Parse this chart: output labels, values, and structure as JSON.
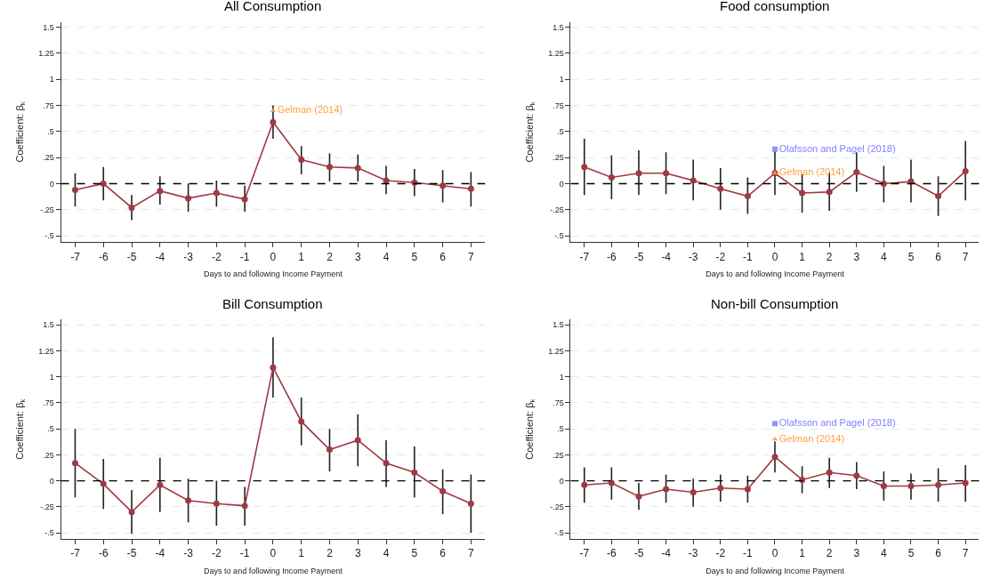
{
  "chart_data": [
    {
      "type": "line",
      "title": "All Consumption",
      "xlabel": "Days to and following Income Payment",
      "ylabel": "Coefficient: β$_{k}$",
      "x": [
        -7,
        -6,
        -5,
        -4,
        -3,
        -2,
        -1,
        0,
        1,
        2,
        3,
        4,
        5,
        6,
        7
      ],
      "series": [
        {
          "color": "#9e3a44",
          "marker": "circle",
          "values": [
            -0.06,
            0,
            -0.23,
            -0.07,
            -0.14,
            -0.09,
            -0.15,
            0.59,
            0.23,
            0.16,
            0.15,
            0.03,
            0.01,
            -0.02,
            -0.05
          ],
          "errors": [
            [
              -0.22,
              0.1
            ],
            [
              -0.16,
              0.16
            ],
            [
              -0.35,
              -0.11
            ],
            [
              -0.2,
              0.07
            ],
            [
              -0.27,
              0
            ],
            [
              -0.22,
              0.03
            ],
            [
              -0.27,
              -0.02
            ],
            [
              0.43,
              0.75
            ],
            [
              0.09,
              0.36
            ],
            [
              0.02,
              0.29
            ],
            [
              0.02,
              0.28
            ],
            [
              -0.1,
              0.17
            ],
            [
              -0.12,
              0.14
            ],
            [
              -0.18,
              0.13
            ],
            [
              -0.22,
              0.11
            ]
          ]
        },
        {
          "type": "scatter",
          "name": "Gelman (2014)",
          "color": "#ffa040",
          "marker": "triangle",
          "values": [
            null,
            null,
            null,
            null,
            null,
            null,
            null,
            0.7,
            null,
            null,
            null,
            null,
            null,
            null,
            null
          ]
        }
      ],
      "xlim": [
        -7.5,
        7.5
      ],
      "xticks": [
        -7,
        -6,
        -5,
        -4,
        -3,
        -2,
        -1,
        0,
        1,
        2,
        3,
        4,
        5,
        6,
        7
      ],
      "ylim": [
        -0.56,
        1.55
      ],
      "yticks": [
        {
          "value": -0.5,
          "label": "-.5"
        },
        {
          "value": -0.25,
          "label": "-.25"
        },
        0,
        {
          "value": 0.25,
          "label": ".25"
        },
        {
          "value": 0.5,
          "label": ".5"
        },
        {
          "value": 0.75,
          "label": ".75"
        },
        1,
        1.25,
        1.5
      ],
      "ref_lines": [
        {
          "axis": "y",
          "value": 0,
          "color": "#000000",
          "line_style": "dashed"
        }
      ],
      "grid": "y",
      "legend": false
    },
    {
      "type": "line",
      "title": "Food consumption",
      "xlabel": "Days to and following Income Payment",
      "ylabel": "Coefficient: β$_{k}$",
      "x": [
        -7,
        -6,
        -5,
        -4,
        -3,
        -2,
        -1,
        0,
        1,
        2,
        3,
        4,
        5,
        6,
        7
      ],
      "series": [
        {
          "color": "#9e3a44",
          "marker": "circle",
          "values": [
            0.16,
            0.06,
            0.1,
            0.1,
            0.03,
            -0.05,
            -0.12,
            0.1,
            -0.09,
            -0.08,
            0.11,
            0.0,
            0.02,
            -0.12,
            0.12
          ],
          "errors": [
            [
              -0.11,
              0.43
            ],
            [
              -0.15,
              0.27
            ],
            [
              -0.11,
              0.32
            ],
            [
              -0.1,
              0.3
            ],
            [
              -0.16,
              0.23
            ],
            [
              -0.25,
              0.15
            ],
            [
              -0.29,
              0.06
            ],
            [
              -0.11,
              0.31
            ],
            [
              -0.28,
              0.09
            ],
            [
              -0.26,
              0.11
            ],
            [
              -0.08,
              0.3
            ],
            [
              -0.18,
              0.17
            ],
            [
              -0.18,
              0.23
            ],
            [
              -0.31,
              0.07
            ],
            [
              -0.16,
              0.41
            ]
          ]
        },
        {
          "type": "scatter",
          "name": "Olafsson and Pagel (2018)",
          "color": "#8080ff",
          "marker": "square",
          "values": [
            null,
            null,
            null,
            null,
            null,
            null,
            null,
            0.33,
            null,
            null,
            null,
            null,
            null,
            null,
            null
          ]
        },
        {
          "type": "scatter",
          "name": "Gelman (2014)",
          "color": "#ffa040",
          "marker": "triangle",
          "values": [
            null,
            null,
            null,
            null,
            null,
            null,
            null,
            0.1,
            null,
            null,
            null,
            null,
            null,
            null,
            null
          ]
        }
      ],
      "xlim": [
        -7.5,
        7.5
      ],
      "xticks": [
        -7,
        -6,
        -5,
        -4,
        -3,
        -2,
        -1,
        0,
        1,
        2,
        3,
        4,
        5,
        6,
        7
      ],
      "ylim": [
        -0.56,
        1.55
      ],
      "yticks": [
        {
          "value": -0.5,
          "label": "-.5"
        },
        {
          "value": -0.25,
          "label": "-.25"
        },
        0,
        {
          "value": 0.25,
          "label": ".25"
        },
        {
          "value": 0.5,
          "label": ".5"
        },
        {
          "value": 0.75,
          "label": ".75"
        },
        1,
        1.25,
        1.5
      ],
      "ref_lines": [
        {
          "axis": "y",
          "value": 0,
          "color": "#000000",
          "line_style": "dashed"
        }
      ],
      "grid": "y",
      "legend": false
    },
    {
      "type": "line",
      "title": "Bill Consumption",
      "xlabel": "Days to and following Income Payment",
      "ylabel": "Coefficient: β$_{k}$",
      "x": [
        -7,
        -6,
        -5,
        -4,
        -3,
        -2,
        -1,
        0,
        1,
        2,
        3,
        4,
        5,
        6,
        7
      ],
      "series": [
        {
          "color": "#9e3a44",
          "marker": "circle",
          "values": [
            0.17,
            -0.03,
            -0.3,
            -0.04,
            -0.19,
            -0.22,
            -0.24,
            1.09,
            0.57,
            0.3,
            0.39,
            0.17,
            0.08,
            -0.1,
            -0.22
          ],
          "errors": [
            [
              -0.16,
              0.5
            ],
            [
              -0.27,
              0.21
            ],
            [
              -0.51,
              -0.09
            ],
            [
              -0.3,
              0.22
            ],
            [
              -0.4,
              0.02
            ],
            [
              -0.43,
              0
            ],
            [
              -0.43,
              -0.06
            ],
            [
              0.8,
              1.38
            ],
            [
              0.34,
              0.8
            ],
            [
              0.09,
              0.5
            ],
            [
              0.14,
              0.64
            ],
            [
              -0.06,
              0.39
            ],
            [
              -0.16,
              0.33
            ],
            [
              -0.32,
              0.11
            ],
            [
              -0.5,
              0.06
            ]
          ]
        }
      ],
      "xlim": [
        -7.5,
        7.5
      ],
      "xticks": [
        -7,
        -6,
        -5,
        -4,
        -3,
        -2,
        -1,
        0,
        1,
        2,
        3,
        4,
        5,
        6,
        7
      ],
      "ylim": [
        -0.56,
        1.55
      ],
      "yticks": [
        {
          "value": -0.5,
          "label": "-.5"
        },
        {
          "value": -0.25,
          "label": "-.25"
        },
        0,
        {
          "value": 0.25,
          "label": ".25"
        },
        {
          "value": 0.5,
          "label": ".5"
        },
        {
          "value": 0.75,
          "label": ".75"
        },
        1,
        1.25,
        1.5
      ],
      "ref_lines": [
        {
          "axis": "y",
          "value": 0,
          "color": "#000000",
          "line_style": "dashed"
        }
      ],
      "grid": "y",
      "legend": false
    },
    {
      "type": "line",
      "title": "Non-bill Consumption",
      "xlabel": "Days to and following Income Payment",
      "ylabel": "Coefficient: β$_{k}$",
      "x": [
        -7,
        -6,
        -5,
        -4,
        -3,
        -2,
        -1,
        0,
        1,
        2,
        3,
        4,
        5,
        6,
        7
      ],
      "series": [
        {
          "color": "#9e3a44",
          "marker": "circle",
          "values": [
            -0.04,
            -0.02,
            -0.15,
            -0.08,
            -0.11,
            -0.07,
            -0.08,
            0.23,
            0.01,
            0.08,
            0.05,
            -0.05,
            -0.05,
            -0.04,
            -0.02
          ],
          "errors": [
            [
              -0.21,
              0.13
            ],
            [
              -0.18,
              0.13
            ],
            [
              -0.28,
              -0.02
            ],
            [
              -0.21,
              0.06
            ],
            [
              -0.25,
              0.02
            ],
            [
              -0.2,
              0.06
            ],
            [
              -0.21,
              0.05
            ],
            [
              0.08,
              0.38
            ],
            [
              -0.12,
              0.14
            ],
            [
              -0.07,
              0.22
            ],
            [
              -0.08,
              0.18
            ],
            [
              -0.19,
              0.09
            ],
            [
              -0.18,
              0.07
            ],
            [
              -0.2,
              0.12
            ],
            [
              -0.2,
              0.15
            ]
          ]
        },
        {
          "type": "scatter",
          "name": "Olafsson and Pagel (2018)",
          "color": "#8080ff",
          "marker": "square",
          "values": [
            null,
            null,
            null,
            null,
            null,
            null,
            null,
            0.55,
            null,
            null,
            null,
            null,
            null,
            null,
            null
          ]
        },
        {
          "type": "scatter",
          "name": "Gelman (2014)",
          "color": "#ffa040",
          "marker": "triangle",
          "values": [
            null,
            null,
            null,
            null,
            null,
            null,
            null,
            0.4,
            null,
            null,
            null,
            null,
            null,
            null,
            null
          ]
        }
      ],
      "xlim": [
        -7.5,
        7.5
      ],
      "xticks": [
        -7,
        -6,
        -5,
        -4,
        -3,
        -2,
        -1,
        0,
        1,
        2,
        3,
        4,
        5,
        6,
        7
      ],
      "ylim": [
        -0.56,
        1.55
      ],
      "yticks": [
        {
          "value": -0.5,
          "label": "-.5"
        },
        {
          "value": -0.25,
          "label": "-.25"
        },
        0,
        {
          "value": 0.25,
          "label": ".25"
        },
        {
          "value": 0.5,
          "label": ".5"
        },
        {
          "value": 0.75,
          "label": ".75"
        },
        1,
        1.25,
        1.5
      ],
      "ref_lines": [
        {
          "axis": "y",
          "value": 0,
          "color": "#000000",
          "line_style": "dashed"
        }
      ],
      "grid": "y",
      "legend": false
    }
  ]
}
